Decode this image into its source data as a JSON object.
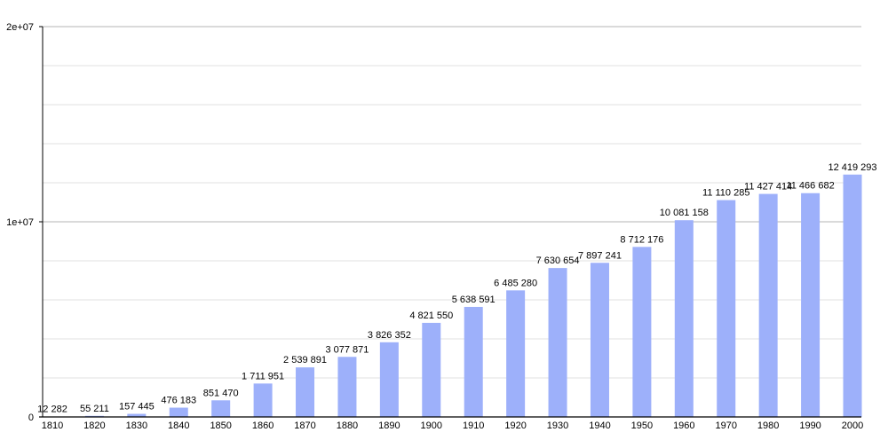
{
  "chart_data": {
    "type": "bar",
    "title": "",
    "xlabel": "",
    "ylabel": "",
    "ylim": [
      0,
      20000000
    ],
    "yticks": [
      0,
      10000000,
      20000000
    ],
    "ytick_labels": [
      "0",
      "1e+07",
      "2e+07"
    ],
    "minor_grid_step": 2000000,
    "grid": true,
    "bar_color": "#9db0fa",
    "categories": [
      "1810",
      "1820",
      "1830",
      "1840",
      "1850",
      "1860",
      "1870",
      "1880",
      "1890",
      "1900",
      "1910",
      "1920",
      "1930",
      "1940",
      "1950",
      "1960",
      "1970",
      "1980",
      "1990",
      "2000"
    ],
    "values": [
      12282,
      55211,
      157445,
      476183,
      851470,
      1711951,
      2539891,
      3077871,
      3826352,
      4821550,
      5638591,
      6485280,
      7630654,
      7897241,
      8712176,
      10081158,
      11110285,
      11427414,
      11466682,
      12419293
    ],
    "data_labels": [
      "12 282",
      "55 211",
      "157 445",
      "476 183",
      "851 470",
      "1 711 951",
      "2 539 891",
      "3 077 871",
      "3 826 352",
      "4 821 550",
      "5 638 591",
      "6 485 280",
      "7 630 654",
      "7 897 241",
      "8 712 176",
      "10 081 158",
      "11 110 285",
      "11 427 414",
      "11 466 682",
      "12 419 293"
    ]
  }
}
